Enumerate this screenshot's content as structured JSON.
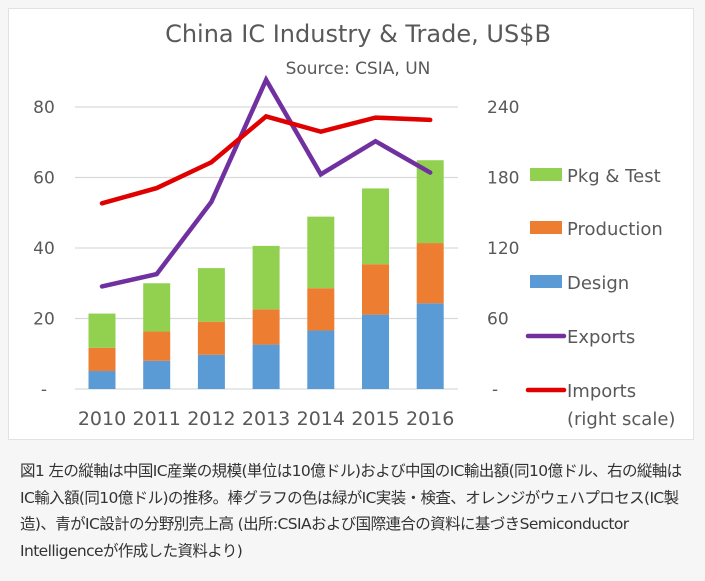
{
  "chart_data": {
    "type": "bar",
    "title": "China IC Industry & Trade, US$B",
    "subtitle": "Source: CSIA, UN",
    "categories": [
      "2010",
      "2011",
      "2012",
      "2013",
      "2014",
      "2015",
      "2016"
    ],
    "left_axis": {
      "ylim": [
        0,
        80
      ],
      "ticks": [
        0,
        20,
        40,
        60,
        80
      ],
      "tick_labels": [
        "-",
        "20",
        "40",
        "60",
        "80"
      ]
    },
    "right_axis": {
      "ylim": [
        0,
        240
      ],
      "ticks": [
        0,
        60,
        120,
        180,
        240
      ],
      "tick_labels": [
        "-",
        "60",
        "120",
        "180",
        "240"
      ]
    },
    "stacked": true,
    "series": [
      {
        "name": "Design",
        "kind": "bar",
        "axis": "left",
        "color": "#5b9bd5",
        "values": [
          5.1,
          8.0,
          9.7,
          12.6,
          16.6,
          21.1,
          24.3
        ]
      },
      {
        "name": "Production",
        "kind": "bar",
        "axis": "left",
        "color": "#ed7d31",
        "values": [
          6.6,
          8.3,
          9.4,
          10.0,
          12.0,
          14.3,
          17.1
        ]
      },
      {
        "name": "Pkg & Test",
        "kind": "bar",
        "axis": "left",
        "color": "#92d050",
        "values": [
          9.7,
          13.7,
          15.2,
          18.0,
          20.3,
          21.5,
          23.5
        ]
      },
      {
        "name": "Exports",
        "kind": "line",
        "axis": "left",
        "color": "#7030a0",
        "values": [
          29.1,
          32.6,
          53.1,
          87.7,
          60.9,
          70.3,
          61.4
        ]
      },
      {
        "name": "Imports",
        "kind": "line",
        "axis": "right",
        "color": "#e00000",
        "values": [
          158,
          171,
          193,
          232,
          219,
          231,
          229
        ]
      }
    ],
    "legend": {
      "placement": "right",
      "entries": [
        {
          "label": "Pkg & Test",
          "color": "#92d050",
          "kind": "box"
        },
        {
          "label": "Production",
          "color": "#ed7d31",
          "kind": "box"
        },
        {
          "label": "Design",
          "color": "#5b9bd5",
          "kind": "box"
        },
        {
          "label": "Exports",
          "color": "#7030a0",
          "kind": "line"
        },
        {
          "label": "Imports",
          "label2": "(right scale)",
          "color": "#e00000",
          "kind": "line"
        }
      ]
    },
    "grid": true,
    "gridline_color": "#d9d9d9"
  },
  "caption": "図1 左の縦軸は中国IC産業の規模(単位は10億ドル)および中国のIC輸出額(同10億ドル、右の縦軸はIC輸入額(同10億ドル)の推移。棒グラフの色は緑がIC実装・検査、オレンジがウェハプロセス(IC製造)、青がIC設計の分野別売上高 (出所:CSIAおよび国際連合の資料に基づきSemiconductor Intelligenceが作成した資料より)"
}
